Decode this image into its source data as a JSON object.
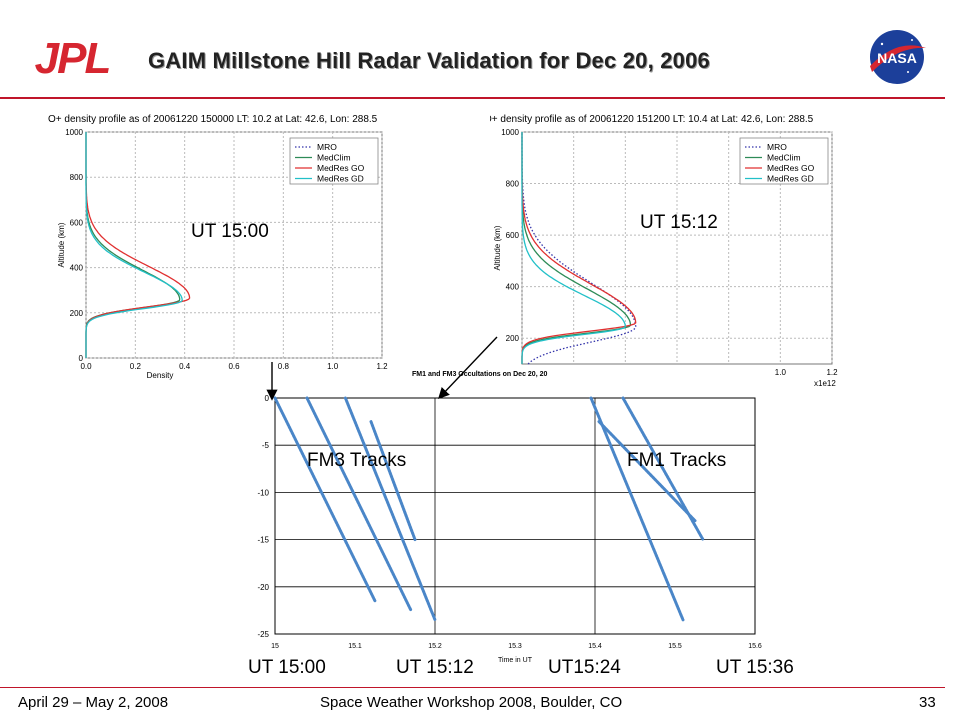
{
  "slide": {
    "title": "GAIM Millstone Hill Radar Validation for Dec 20, 2006",
    "logo_left_text": "JPL",
    "logo_right_text": "NASA",
    "footer_left": "April 29 – May 2, 2008",
    "footer_center": "Space Weather Workshop 2008, Boulder, CO",
    "footer_right": "33"
  },
  "annotations": {
    "ut_1500_top": "UT 15:00",
    "ut_1512_top": "UT 15:12",
    "fm3": "FM3 Tracks",
    "fm1": "FM1 Tracks",
    "bottom": [
      "UT 15:00",
      "UT 15:12",
      "UT15:24",
      "UT 15:36"
    ]
  },
  "colors": {
    "MRO": "#3333aa",
    "MedClim": "#2e8b57",
    "MedRes GO": "#e03030",
    "MedRes GD": "#22c0c8",
    "tracks": "#4a86c8",
    "accent_rule": "#c0152a"
  },
  "chart_data": [
    {
      "type": "line",
      "title": "O+ density profile as of 20061220 150000 LT: 10.2 at Lat: 42.6, Lon: 288.5",
      "xlabel": "Density",
      "ylabel": "Altitude (km)",
      "xlim": [
        0,
        1.2
      ],
      "ylim": [
        0,
        1000
      ],
      "xticks": [
        "0.0",
        "0.2",
        "0.4",
        "0.6",
        "0.8",
        "1.0",
        "1.2"
      ],
      "yticks": [
        "0",
        "200",
        "400",
        "600",
        "800",
        "1000"
      ],
      "legend_position": "top-right",
      "grid": true,
      "series": [
        {
          "name": "MRO",
          "peak_altitude": 255,
          "peak_density": 0.4,
          "visible": false
        },
        {
          "name": "MedClim",
          "peak_altitude": 258,
          "peak_density": 0.38,
          "lower_width": 35,
          "upper_width": 130
        },
        {
          "name": "MedRes GO",
          "peak_altitude": 265,
          "peak_density": 0.42,
          "lower_width": 38,
          "upper_width": 140
        },
        {
          "name": "MedRes GD",
          "peak_altitude": 255,
          "peak_density": 0.39,
          "lower_width": 36,
          "upper_width": 125
        }
      ]
    },
    {
      "type": "line",
      "title": "O+ density profile as of 20061220 151200 LT: 10.4 at Lat: 42.6, Lon: 288.5",
      "xlabel": "",
      "ylabel": "Altitude (km)",
      "xlim": [
        0,
        1.2
      ],
      "ylim": [
        100,
        1000
      ],
      "xticks": [
        "1.0",
        "1.2"
      ],
      "yticks": [
        "200",
        "400",
        "600",
        "800",
        "1000"
      ],
      "x_multiplier": "x1e12",
      "legend_position": "top-right",
      "grid": true,
      "series": [
        {
          "name": "MRO",
          "peak_altitude": 245,
          "peak_density": 0.44,
          "lower_width": 60,
          "upper_width": 170,
          "dotted": true
        },
        {
          "name": "MedClim",
          "peak_altitude": 250,
          "peak_density": 0.42,
          "lower_width": 30,
          "upper_width": 140
        },
        {
          "name": "MedRes GO",
          "peak_altitude": 260,
          "peak_density": 0.44,
          "lower_width": 32,
          "upper_width": 150
        },
        {
          "name": "MedRes GD",
          "peak_altitude": 245,
          "peak_density": 0.4,
          "lower_width": 30,
          "upper_width": 120
        }
      ]
    },
    {
      "type": "scatter",
      "title": "FM1 and FM3 Occultations on Dec 20, 20",
      "xlabel": "Time in UT",
      "xlim": [
        15.0,
        15.6
      ],
      "ylim": [
        -25,
        0
      ],
      "xticks": [
        "15",
        "15.1",
        "15.2",
        "15.3",
        "15.4",
        "15.5",
        "15.6"
      ],
      "yticks": [
        "0",
        "-5",
        "-10",
        "-15",
        "-20",
        "-25"
      ],
      "grid": true,
      "tracks": [
        {
          "group": "FM3",
          "x": [
            15.0,
            15.125
          ],
          "y": [
            0,
            -21.5
          ]
        },
        {
          "group": "FM3",
          "x": [
            15.04,
            15.17
          ],
          "y": [
            0,
            -22.5
          ]
        },
        {
          "group": "FM3",
          "x": [
            15.088,
            15.2
          ],
          "y": [
            0,
            -23.5
          ]
        },
        {
          "group": "FM3",
          "x": [
            15.12,
            15.175
          ],
          "y": [
            -2.5,
            -15.0
          ]
        },
        {
          "group": "FM1",
          "x": [
            15.395,
            15.51
          ],
          "y": [
            0,
            -23.5
          ]
        },
        {
          "group": "FM1",
          "x": [
            15.405,
            15.525
          ],
          "y": [
            -2.5,
            -13.0
          ]
        },
        {
          "group": "FM1",
          "x": [
            15.435,
            15.535
          ],
          "y": [
            0,
            -15.0
          ]
        }
      ]
    }
  ]
}
